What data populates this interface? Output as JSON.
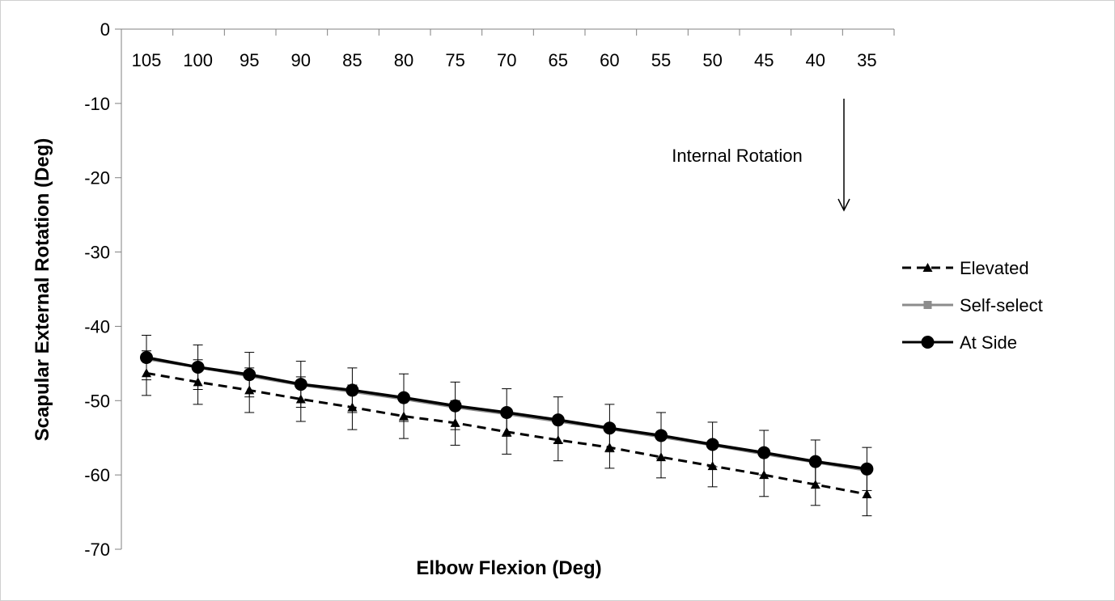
{
  "chart_data": {
    "type": "line",
    "title": "",
    "xlabel": "Elbow Flexion (Deg)",
    "ylabel": "Scapular External Rotation (Deg)",
    "x": [
      105,
      100,
      95,
      90,
      85,
      80,
      75,
      70,
      65,
      60,
      55,
      50,
      45,
      40,
      35
    ],
    "x_tick_labels": [
      "105",
      "100",
      "95",
      "90",
      "85",
      "80",
      "75",
      "70",
      "65",
      "60",
      "55",
      "50",
      "45",
      "40",
      "35"
    ],
    "ylim": [
      -70,
      0
    ],
    "y_ticks": [
      0,
      -10,
      -20,
      -30,
      -40,
      -50,
      -60,
      -70
    ],
    "y_tick_labels": [
      "0",
      "-10",
      "-20",
      "-30",
      "-40",
      "-50",
      "-60",
      "-70"
    ],
    "x_axis_position": "top",
    "grid": false,
    "legend_position": "right",
    "series": [
      {
        "name": "Elevated",
        "style": "dashed",
        "marker": "triangle",
        "color": "#000000",
        "values": [
          -46.3,
          -47.5,
          -48.6,
          -49.8,
          -50.9,
          -52.1,
          -53.0,
          -54.2,
          -55.3,
          -56.3,
          -57.6,
          -58.8,
          -60.0,
          -61.3,
          -62.6
        ],
        "error": [
          3.0,
          3.0,
          3.0,
          3.0,
          3.0,
          3.0,
          3.0,
          3.0,
          2.8,
          2.8,
          2.8,
          2.8,
          2.9,
          2.8,
          2.9
        ]
      },
      {
        "name": "Self-select",
        "style": "solid",
        "marker": "square",
        "color": "#8c8c8c",
        "values": [
          -44.4,
          -45.5,
          -46.7,
          -47.9,
          -48.8,
          -49.8,
          -50.9,
          -51.8,
          -52.8,
          -53.8,
          -54.9,
          -56.0,
          -57.2,
          -58.3,
          -59.4
        ],
        "error": []
      },
      {
        "name": "At Side",
        "style": "solid",
        "marker": "circle",
        "color": "#000000",
        "values": [
          -44.2,
          -45.5,
          -46.5,
          -47.8,
          -48.6,
          -49.6,
          -50.7,
          -51.6,
          -52.6,
          -53.7,
          -54.7,
          -55.9,
          -57.0,
          -58.2,
          -59.2
        ],
        "error": [
          3.0,
          3.0,
          3.0,
          3.1,
          3.0,
          3.2,
          3.2,
          3.2,
          3.1,
          3.2,
          3.1,
          3.0,
          3.0,
          2.9,
          2.9
        ]
      }
    ],
    "annotations": [
      {
        "text": "Internal Rotation",
        "arrow": "down"
      }
    ]
  }
}
